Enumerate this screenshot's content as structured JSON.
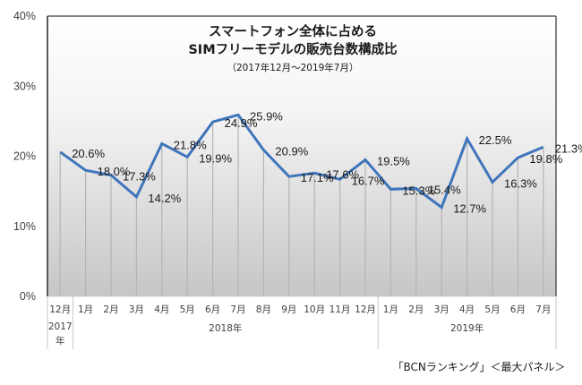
{
  "chart_data": {
    "type": "line",
    "title": "スマートフォン全体に占める",
    "title_line2": "SIMフリーモデルの販売台数構成比",
    "subtitle": "（2017年12月～2019年7月）",
    "source": "「BCNランキング」＜最大パネル＞",
    "xlabel": "",
    "ylabel": "",
    "ylim": [
      0,
      40
    ],
    "yticks": [
      0,
      10,
      20,
      30,
      40
    ],
    "ytick_labels": [
      "0%",
      "10%",
      "20%",
      "30%",
      "40%"
    ],
    "categories": [
      "12月",
      "1月",
      "2月",
      "3月",
      "4月",
      "5月",
      "6月",
      "7月",
      "8月",
      "9月",
      "10月",
      "11月",
      "12月",
      "1月",
      "2月",
      "3月",
      "4月",
      "5月",
      "6月",
      "7月"
    ],
    "groups": [
      {
        "label_lines": [
          "2017",
          "年"
        ],
        "count": 1
      },
      {
        "label_lines": [
          "2018年"
        ],
        "count": 12
      },
      {
        "label_lines": [
          "2019年"
        ],
        "count": 7
      }
    ],
    "series": [
      {
        "name": "SIMフリーモデル構成比",
        "values": [
          20.6,
          18.0,
          17.3,
          14.2,
          21.8,
          19.9,
          24.9,
          25.9,
          20.9,
          17.1,
          17.6,
          16.7,
          19.5,
          15.3,
          15.4,
          12.7,
          22.5,
          16.3,
          19.8,
          21.3
        ],
        "labels": [
          "20.6%",
          "18.0%",
          "17.3%",
          "14.2%",
          "21.8%",
          "19.9%",
          "24.9%",
          "25.9%",
          "20.9%",
          "17.1%",
          "17.6%",
          "16.7%",
          "19.5%",
          "15.3%",
          "15.4%",
          "12.7%",
          "22.5%",
          "16.3%",
          "19.8%",
          "21.3%"
        ]
      }
    ],
    "grid": false,
    "drop_lines": true,
    "legend": "none",
    "colors": {
      "line": "#3f75bb",
      "drop_line": "#b4b4b4",
      "axis": "#595959",
      "plot_top": "#ffffff",
      "plot_bottom": "#c6c6c6"
    }
  }
}
